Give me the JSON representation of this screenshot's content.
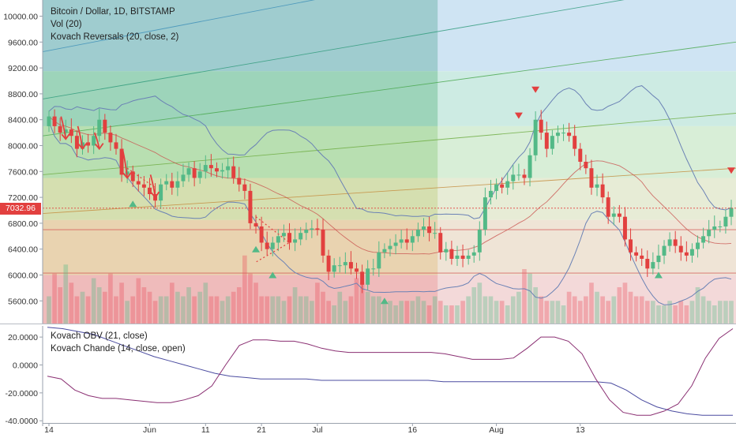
{
  "header": {
    "symbol_title": "Bitcoin / Dollar, 1D, BITSTAMP",
    "indicator_vol": "Vol (20)",
    "indicator_reversals": "Kovach Reversals (20, close, 2)"
  },
  "lower_pane": {
    "indicator_obv": "Kovach OBV (21, close)",
    "indicator_chande": "Kovach Chande (14, close, open)",
    "ticks": [
      "20.0000",
      "0.0000",
      "-20.0000",
      "-40.0000"
    ]
  },
  "price_axis": {
    "ticks": [
      "10000.00",
      "9600.00",
      "9200.00",
      "8800.00",
      "8400.00",
      "8000.00",
      "7600.00",
      "7200.00",
      "6800.00",
      "6400.00",
      "6000.00",
      "5600.00"
    ],
    "last_price": "7032.96"
  },
  "time_axis": {
    "ticks": [
      "14",
      "Jun",
      "11",
      "21",
      "Jul",
      "16",
      "Aug",
      "13"
    ]
  },
  "colors": {
    "up": "#53b987",
    "down": "#eb4d5c",
    "accent_red": "#e2403f",
    "band_line": "#6b82b5"
  },
  "chart_data": {
    "type": "candlestick",
    "title": "Bitcoin / Dollar, 1D, BITSTAMP",
    "ylim": [
      5250,
      10250
    ],
    "close": [
      8450,
      8300,
      8200,
      8250,
      8150,
      7950,
      8050,
      8000,
      8150,
      8400,
      8200,
      8050,
      7950,
      7550,
      7600,
      7450,
      7400,
      7350,
      7250,
      7150,
      7400,
      7450,
      7350,
      7450,
      7550,
      7650,
      7500,
      7600,
      7700,
      7650,
      7600,
      7620,
      7680,
      7500,
      7400,
      7300,
      6800,
      6750,
      6500,
      6400,
      6500,
      6600,
      6650,
      6500,
      6550,
      6650,
      6700,
      6720,
      6700,
      6300,
      6050,
      6150,
      6150,
      6200,
      6100,
      6050,
      5850,
      6100,
      6100,
      6350,
      6400,
      6450,
      6500,
      6550,
      6500,
      6600,
      6700,
      6750,
      6650,
      6650,
      6350,
      6400,
      6250,
      6300,
      6250,
      6300,
      6350,
      6700,
      7200,
      7300,
      7400,
      7350,
      7450,
      7550,
      7550,
      7500,
      7850,
      8400,
      8200,
      7950,
      8150,
      8200,
      8200,
      8150,
      7950,
      7750,
      7650,
      7350,
      7400,
      7200,
      6900,
      6950,
      6900,
      6550,
      6350,
      6300,
      6250,
      6100,
      6200,
      6300,
      6450,
      6550,
      6450,
      6350,
      6300,
      6400,
      6500,
      6600,
      6700,
      6750,
      6750,
      6900,
      7033
    ],
    "series": [
      {
        "name": "Vol (20)",
        "values": [
          30,
          55,
          40,
          65,
          45,
          30,
          35,
          30,
          50,
          40,
          35,
          55,
          30,
          45,
          25,
          30,
          50,
          40,
          35,
          25,
          30,
          30,
          45,
          35,
          30,
          40,
          30,
          35,
          45,
          30,
          30,
          25,
          30,
          35,
          40,
          75,
          55,
          45,
          30,
          30,
          30,
          30,
          25,
          30,
          40,
          30,
          30,
          25,
          45,
          35,
          25,
          20,
          35,
          25,
          30,
          50,
          45,
          35,
          30,
          30,
          25,
          25,
          20,
          25,
          25,
          25,
          30,
          25,
          20,
          30,
          25,
          20,
          20,
          20,
          25,
          30,
          40,
          45,
          30,
          30,
          25,
          25,
          20,
          30,
          35,
          60,
          55,
          40,
          30,
          25,
          25,
          25,
          20,
          35,
          30,
          25,
          30,
          45,
          35,
          30,
          25,
          30,
          40,
          45,
          35,
          30,
          30,
          25,
          25,
          20,
          20,
          25,
          20,
          25,
          20,
          25,
          40,
          30,
          25,
          20,
          25,
          25,
          25
        ]
      }
    ]
  }
}
